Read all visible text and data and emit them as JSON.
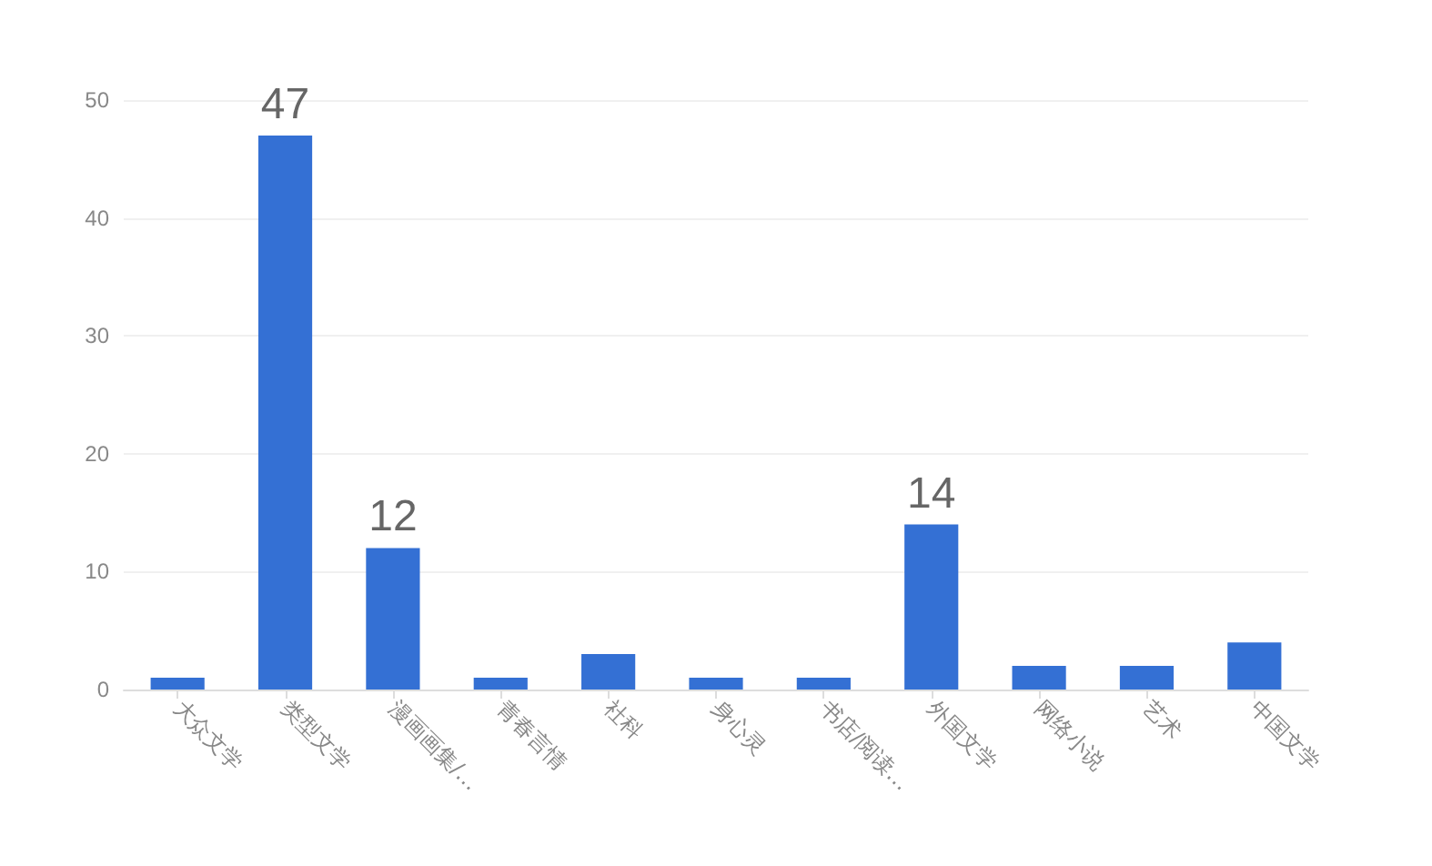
{
  "chart_data": {
    "type": "bar",
    "categories": [
      "大众文学",
      "类型文学",
      "漫画画集/…",
      "青春言情",
      "社科",
      "身心灵",
      "书店/阅读…",
      "外国文学",
      "网络小说",
      "艺术",
      "中国文学"
    ],
    "values": [
      1,
      47,
      12,
      1,
      3,
      1,
      1,
      14,
      2,
      2,
      4
    ],
    "value_labels": [
      null,
      "47",
      "12",
      null,
      null,
      null,
      null,
      "14",
      null,
      null,
      null
    ],
    "color": "#3470d4",
    "ylim": [
      0,
      50
    ],
    "yticks": [
      0,
      10,
      20,
      30,
      40,
      50
    ],
    "grid": "y"
  }
}
